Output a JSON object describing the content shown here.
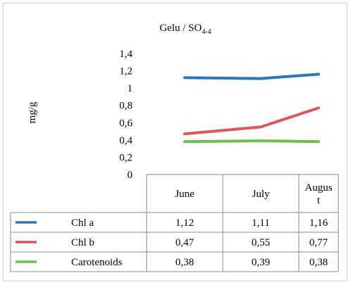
{
  "chart_data": {
    "type": "line",
    "title_main": "Gelu / SO",
    "title_sub": "4-4",
    "ylabel": "mg/g",
    "xlabel": "",
    "categories": [
      "June",
      "July",
      "August"
    ],
    "category_display": [
      [
        "June"
      ],
      [
        "July"
      ],
      [
        "Augus",
        "t"
      ]
    ],
    "ylim": [
      0,
      1.4
    ],
    "yticks": [
      "0",
      "0,2",
      "0,4",
      "0,6",
      "0,8",
      "1",
      "1,2",
      "1,4"
    ],
    "grid": false,
    "legend": "data-table",
    "series": [
      {
        "name": "Chl a",
        "color": "#2e75b6",
        "values": [
          1.12,
          1.11,
          1.16
        ],
        "labels": [
          "1,12",
          "1,11",
          "1,16"
        ]
      },
      {
        "name": "Chl b",
        "color": "#e05555",
        "values": [
          0.47,
          0.55,
          0.77
        ],
        "labels": [
          "0,47",
          "0,55",
          "0,77"
        ]
      },
      {
        "name": "Carotenoids",
        "color": "#6cc04a",
        "values": [
          0.38,
          0.39,
          0.38
        ],
        "labels": [
          "0,38",
          "0,39",
          "0,38"
        ]
      }
    ]
  }
}
